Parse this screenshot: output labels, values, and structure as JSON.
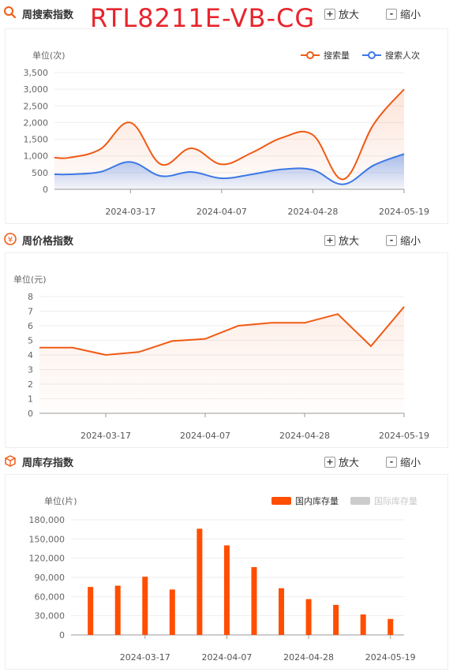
{
  "product_name": "RTL8211E-VB-CG",
  "controls": {
    "zoom_in": "放大",
    "zoom_out": "缩小"
  },
  "sections": {
    "search": {
      "title": "周搜索指数"
    },
    "price": {
      "title": "周价格指数"
    },
    "stock": {
      "title": "周库存指数"
    }
  },
  "colors": {
    "search_volume": "#f05a14",
    "searchers": "#3c78e6",
    "domestic_stock": "#ff4e00",
    "intl_stock": "#cccccc"
  },
  "chart_data": [
    {
      "type": "area",
      "ylabel": "单位(次)",
      "yticks": [
        "0",
        "500",
        "1,000",
        "1,500",
        "2,000",
        "2,500",
        "3,000",
        "3,500"
      ],
      "ylim": [
        0,
        3500
      ],
      "xticks": [
        "2024-03-17",
        "2024-04-07",
        "2024-04-28",
        "2024-05-19"
      ],
      "legend": "top-right",
      "x": [
        "2024-03-03",
        "2024-03-10",
        "2024-03-17",
        "2024-03-24",
        "2024-03-31",
        "2024-04-07",
        "2024-04-14",
        "2024-04-21",
        "2024-04-28",
        "2024-05-05",
        "2024-05-12",
        "2024-05-19"
      ],
      "series": [
        {
          "name": "搜索量",
          "values": [
            950,
            1200,
            2000,
            750,
            1230,
            750,
            1100,
            1550,
            1630,
            300,
            1950,
            3000
          ]
        },
        {
          "name": "搜索人次",
          "values": [
            450,
            520,
            820,
            400,
            520,
            330,
            450,
            600,
            580,
            150,
            720,
            1060
          ]
        }
      ]
    },
    {
      "type": "area",
      "ylabel": "单位(元)",
      "yticks": [
        "0",
        "1",
        "2",
        "3",
        "4",
        "5",
        "6",
        "7",
        "8"
      ],
      "ylim": [
        0,
        8
      ],
      "xticks": [
        "2024-03-17",
        "2024-04-07",
        "2024-04-28",
        "2024-05-19"
      ],
      "x": [
        "2024-03-03",
        "2024-03-10",
        "2024-03-17",
        "2024-03-24",
        "2024-03-31",
        "2024-04-07",
        "2024-04-14",
        "2024-04-21",
        "2024-04-28",
        "2024-05-05",
        "2024-05-12",
        "2024-05-19"
      ],
      "series": [
        {
          "name": "价格",
          "values": [
            4.5,
            4.5,
            4.0,
            4.2,
            4.95,
            5.1,
            6.0,
            6.2,
            6.2,
            6.8,
            4.6,
            7.3
          ]
        }
      ]
    },
    {
      "type": "bar",
      "ylabel": "单位(片)",
      "yticks": [
        "0",
        "30,000",
        "60,000",
        "90,000",
        "120,000",
        "150,000",
        "180,000"
      ],
      "ylim": [
        0,
        180000
      ],
      "xticks": [
        "2024-03-17",
        "2024-04-07",
        "2024-04-28",
        "2024-05-19"
      ],
      "legend": "top-right",
      "x": [
        "2024-03-03",
        "2024-03-10",
        "2024-03-17",
        "2024-03-24",
        "2024-03-31",
        "2024-04-07",
        "2024-04-14",
        "2024-04-21",
        "2024-04-28",
        "2024-05-05",
        "2024-05-12",
        "2024-05-19"
      ],
      "series": [
        {
          "name": "国内库存量",
          "values": [
            75000,
            77000,
            91000,
            71000,
            166000,
            140000,
            106000,
            73000,
            56000,
            47000,
            32000,
            25000
          ]
        },
        {
          "name": "国际库存量",
          "values": [
            0,
            0,
            0,
            0,
            0,
            0,
            0,
            0,
            0,
            0,
            0,
            0
          ]
        }
      ]
    }
  ]
}
